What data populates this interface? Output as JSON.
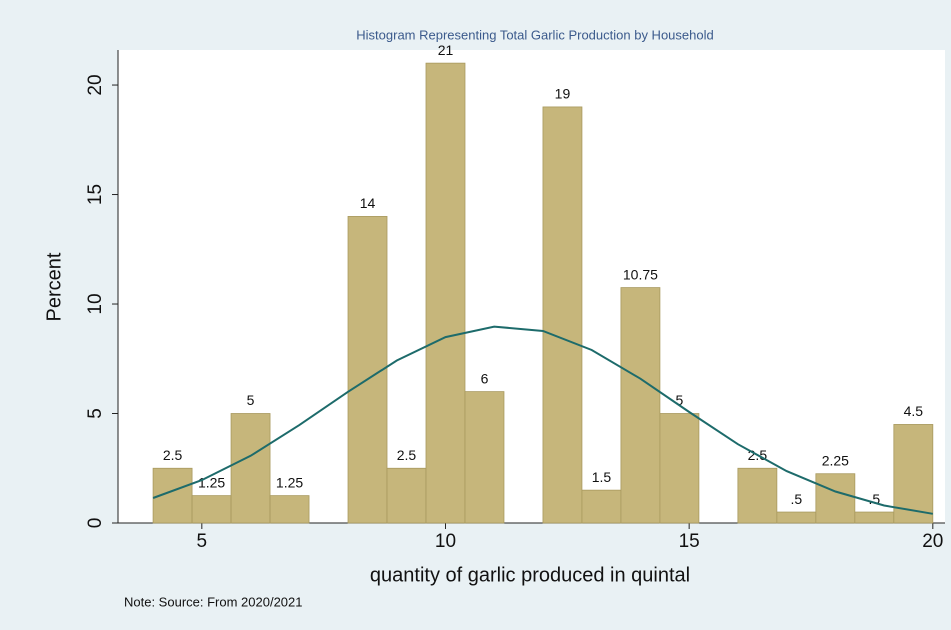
{
  "chart_data": {
    "type": "histogram",
    "title": "Histogram Representing Total Garlic Production by  Household",
    "xlabel": "quantity of garlic produced in quintal",
    "ylabel": "Percent",
    "note": "Note: Source: From 2020/2021",
    "bins": [
      4,
      4.8,
      5.6,
      6.4,
      7.2,
      8,
      8.8,
      9.6,
      10.4,
      11.2,
      12,
      12.8,
      13.6,
      14.4,
      15.2,
      16,
      16.8,
      17.6,
      18.4,
      19.2,
      20
    ],
    "values": [
      2.5,
      1.25,
      5,
      1.25,
      0,
      14,
      2.5,
      21,
      6,
      0,
      19,
      1.5,
      10.75,
      5,
      0,
      2.5,
      0.5,
      2.25,
      0.5,
      4.5
    ],
    "value_labels": [
      "2.5",
      "1.25",
      "5",
      "1.25",
      null,
      "14",
      "2.5",
      "21",
      "6",
      null,
      "19",
      "1.5",
      "10.75",
      "5",
      null,
      "2.5",
      ".5",
      "2.25",
      ".5",
      "4.5"
    ],
    "color": "#c6b67b",
    "edge_color": "#a8995e",
    "curve": {
      "color": "#1d6b6b",
      "x": [
        4,
        5,
        6,
        7,
        8,
        9,
        10,
        11,
        12,
        13,
        14,
        15,
        16,
        17,
        18,
        19,
        20
      ],
      "values": [
        1.14,
        1.96,
        3.07,
        4.47,
        5.99,
        7.42,
        8.49,
        8.97,
        8.77,
        7.9,
        6.59,
        5.07,
        3.6,
        2.37,
        1.44,
        0.8,
        0.42
      ]
    },
    "xlim": [
      3.28,
      20.25
    ],
    "ylim": [
      0,
      21.6
    ],
    "xticks": [
      5,
      10,
      15,
      20
    ],
    "yticks": [
      0,
      5,
      10,
      15,
      20
    ]
  }
}
